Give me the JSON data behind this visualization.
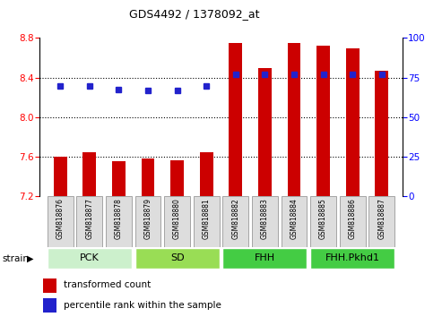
{
  "title": "GDS4492 / 1378092_at",
  "samples": [
    "GSM818876",
    "GSM818877",
    "GSM818878",
    "GSM818879",
    "GSM818880",
    "GSM818881",
    "GSM818882",
    "GSM818883",
    "GSM818884",
    "GSM818885",
    "GSM818886",
    "GSM818887"
  ],
  "red_values": [
    7.6,
    7.65,
    7.56,
    7.58,
    7.57,
    7.65,
    8.75,
    8.5,
    8.75,
    8.72,
    8.7,
    8.47
  ],
  "blue_values": [
    8.32,
    8.32,
    8.28,
    8.27,
    8.27,
    8.32,
    8.43,
    8.43,
    8.43,
    8.43,
    8.43,
    8.43
  ],
  "groups": [
    {
      "label": "PCK",
      "start": 0,
      "end": 3,
      "color": "#ccf0cc"
    },
    {
      "label": "SD",
      "start": 3,
      "end": 6,
      "color": "#99dd55"
    },
    {
      "label": "FHH",
      "start": 6,
      "end": 9,
      "color": "#44cc44"
    },
    {
      "label": "FHH.Pkhd1",
      "start": 9,
      "end": 12,
      "color": "#44cc44"
    }
  ],
  "ylim_left": [
    7.2,
    8.8
  ],
  "ylim_right": [
    0,
    100
  ],
  "yticks_left": [
    7.2,
    7.6,
    8.0,
    8.4,
    8.8
  ],
  "yticks_right": [
    0,
    25,
    50,
    75,
    100
  ],
  "bar_color": "#cc0000",
  "dot_color": "#2222cc",
  "legend_items": [
    {
      "label": "transformed count",
      "color": "#cc0000"
    },
    {
      "label": "percentile rank within the sample",
      "color": "#2222cc"
    }
  ],
  "bar_width": 0.45,
  "ybase": 7.2,
  "grid_lines": [
    7.6,
    8.0,
    8.4
  ],
  "tick_label_bg": "#dddddd",
  "tick_label_border": "#888888"
}
